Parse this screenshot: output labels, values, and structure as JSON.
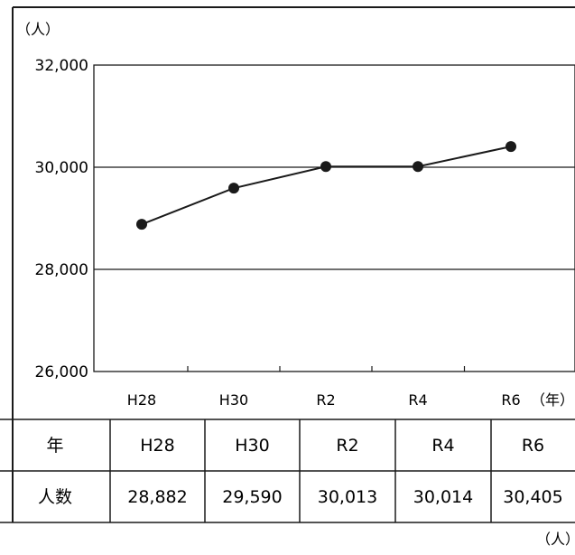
{
  "chart_data": {
    "type": "line",
    "y_unit": "（人）",
    "x_unit": "（年）",
    "categories": [
      "H28",
      "H30",
      "R2",
      "R4",
      "R6"
    ],
    "series": [
      {
        "values": [
          28882,
          29590,
          30013,
          30014,
          30405
        ]
      }
    ],
    "ylim": [
      26000,
      32000
    ],
    "y_ticks": [
      "26,000",
      "28,000",
      "30,000",
      "32,000"
    ],
    "gridlines": [
      28000,
      30000
    ],
    "legend": "none"
  },
  "table": {
    "header_label": "年",
    "row_label": "人数",
    "years": [
      "H28",
      "H30",
      "R2",
      "R4",
      "R6"
    ],
    "values": [
      "28,882",
      "29,590",
      "30,013",
      "30,014",
      "30,405"
    ],
    "unit": "（人）"
  }
}
